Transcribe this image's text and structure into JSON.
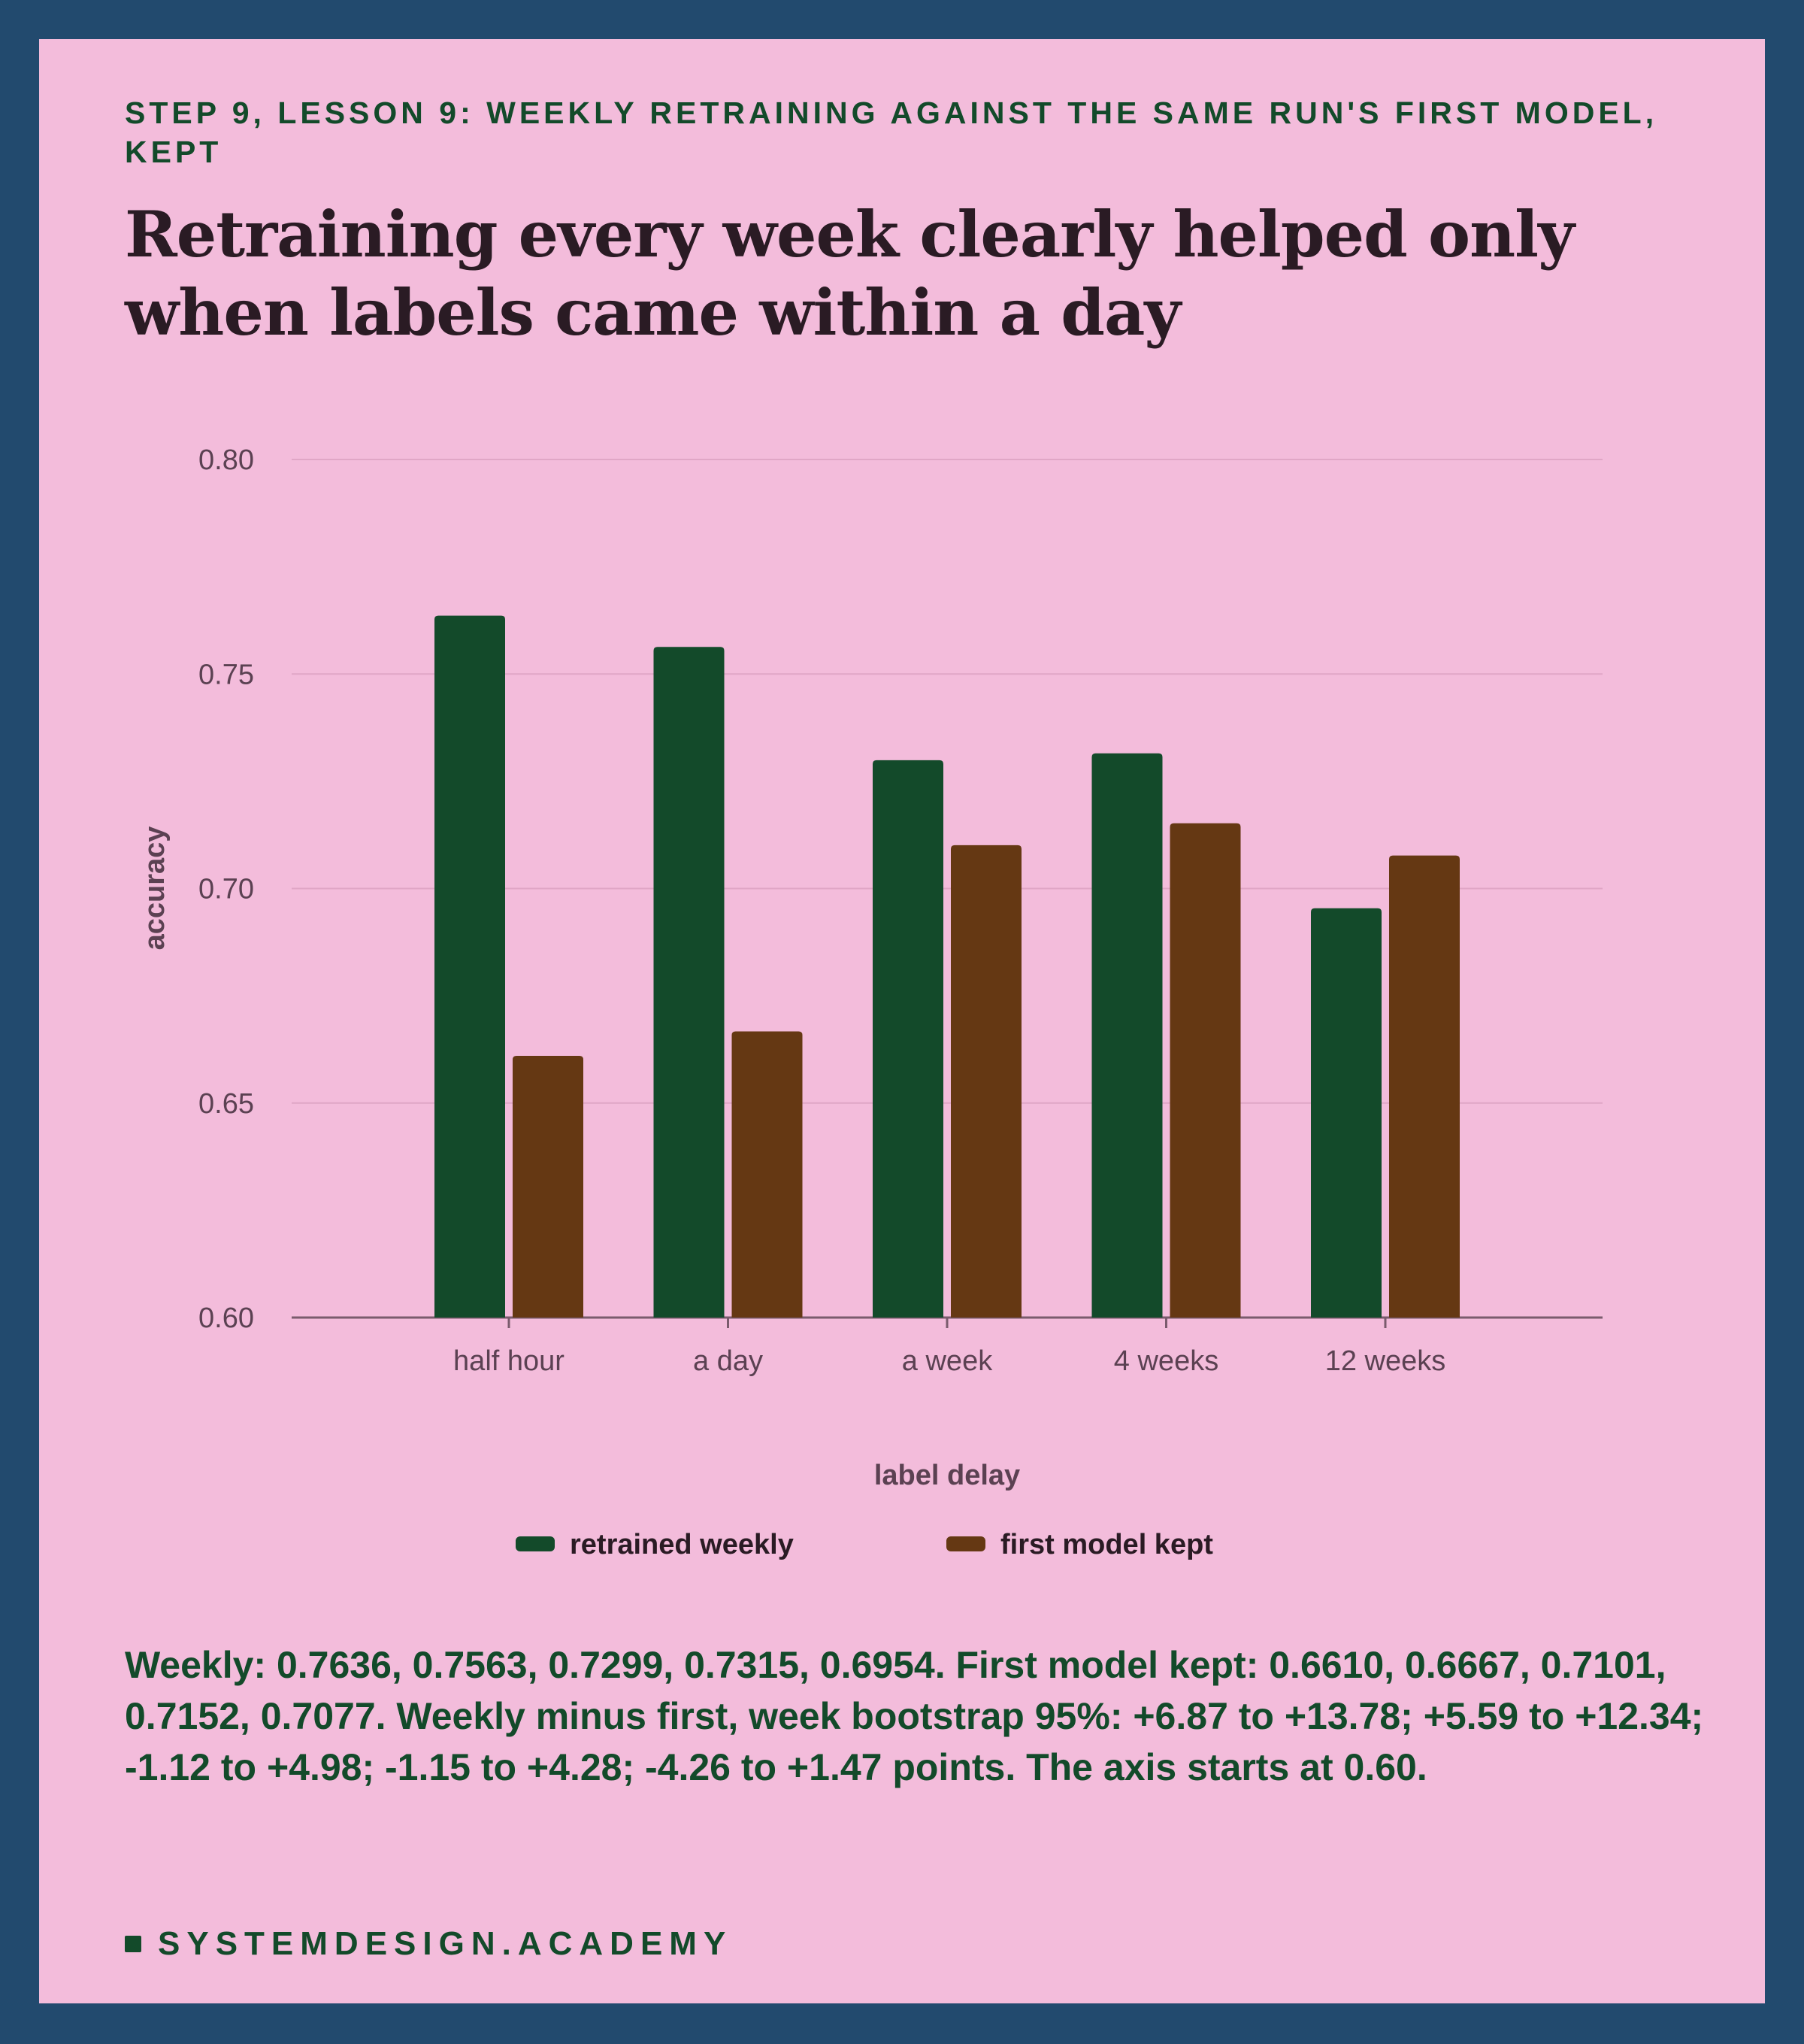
{
  "eyebrow": "STEP 9, LESSON 9: WEEKLY RETRAINING AGAINST THE SAME RUN'S FIRST MODEL, KEPT",
  "headline": "Retraining every week clearly helped only when labels came within a day",
  "caption": "Weekly: 0.7636, 0.7563, 0.7299, 0.7315, 0.6954. First model kept: 0.6610, 0.6667, 0.7101, 0.7152, 0.7077. Weekly minus first, week bootstrap 95%: +6.87 to +13.78; +5.59 to +12.34; -1.12 to +4.98; -1.15 to +4.28; -4.26 to +1.47 points. The axis starts at 0.60.",
  "brand": "SYSTEMDESIGN.ACADEMY",
  "colors": {
    "background": "#224a6e",
    "card": "#f3bcdb",
    "retrained": "#134a2a",
    "first_model": "#653813",
    "gridline": "#e0a6c6",
    "axis": "#7a5b6d"
  },
  "chart_data": {
    "type": "bar",
    "title": "Retraining every week clearly helped only when labels came within a day",
    "xlabel": "label delay",
    "ylabel": "accuracy",
    "categories": [
      "half hour",
      "a day",
      "a week",
      "4 weeks",
      "12 weeks"
    ],
    "series": [
      {
        "name": "retrained weekly",
        "color": "#134a2a",
        "values": [
          0.7636,
          0.7563,
          0.7299,
          0.7315,
          0.6954
        ]
      },
      {
        "name": "first model kept",
        "color": "#653813",
        "values": [
          0.661,
          0.6667,
          0.7101,
          0.7152,
          0.7077
        ]
      }
    ],
    "ylim": [
      0.6,
      0.8
    ],
    "yticks": [
      "0.60",
      "0.65",
      "0.70",
      "0.75",
      "0.80"
    ],
    "grid": true,
    "legend_position": "bottom"
  }
}
